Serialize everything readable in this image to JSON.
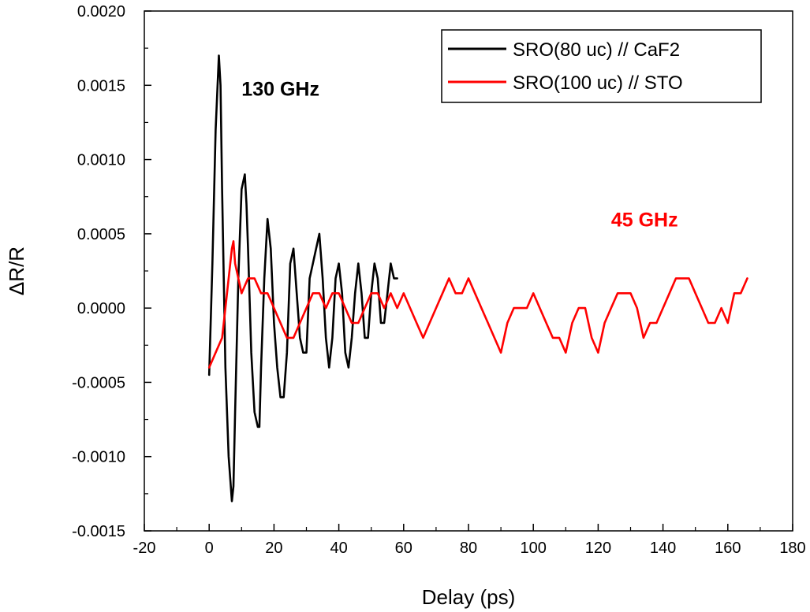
{
  "chart_data": {
    "type": "line",
    "xlabel": "Delay (ps)",
    "ylabel": "ΔR/R",
    "xlim": [
      -20,
      180
    ],
    "ylim": [
      -0.0015,
      0.002
    ],
    "x_ticks": [
      -20,
      0,
      20,
      40,
      60,
      80,
      100,
      120,
      140,
      160,
      180
    ],
    "x_tick_labels": [
      "-20",
      "0",
      "20",
      "40",
      "60",
      "80",
      "100",
      "120",
      "140",
      "160",
      "180"
    ],
    "y_ticks": [
      -0.0015,
      -0.001,
      -0.0005,
      0.0,
      0.0005,
      0.001,
      0.0015,
      0.002
    ],
    "y_tick_labels": [
      "-0.0015",
      "-0.0010",
      "-0.0005",
      "0.0000",
      "0.0005",
      "0.0010",
      "0.0015",
      "0.0020"
    ],
    "grid": false,
    "legend_position": "top-right",
    "series": [
      {
        "name": "SRO(80 uc) // CaF2",
        "color": "#000000",
        "x": [
          0,
          1,
          2,
          3,
          3.5,
          4,
          5,
          6,
          7,
          7.5,
          8,
          9,
          10,
          11,
          11.5,
          12,
          13,
          14,
          15,
          15.5,
          16,
          17,
          18,
          19,
          20,
          21,
          22,
          23,
          24,
          25,
          26,
          27,
          28,
          29,
          30,
          31,
          32,
          33,
          34,
          35,
          36,
          37,
          38,
          39,
          40,
          41,
          42,
          43,
          44,
          45,
          46,
          47,
          48,
          49,
          50,
          51,
          52,
          53,
          54,
          55,
          56,
          57,
          58
        ],
        "values": [
          -0.00045,
          0.0003,
          0.0012,
          0.0017,
          0.0015,
          0.0008,
          -0.0004,
          -0.001,
          -0.0013,
          -0.0012,
          -0.0007,
          0.0002,
          0.0008,
          0.0009,
          0.0007,
          0.0004,
          -0.0003,
          -0.0007,
          -0.0008,
          -0.0008,
          -0.0004,
          0.0002,
          0.0006,
          0.0004,
          -0.0001,
          -0.0004,
          -0.0006,
          -0.0006,
          -0.0003,
          0.0003,
          0.0004,
          0.0001,
          -0.0002,
          -0.0003,
          -0.0003,
          0.0002,
          0.0003,
          0.0004,
          0.0005,
          0.0002,
          -0.0002,
          -0.0004,
          -0.0002,
          0.0002,
          0.0003,
          0.0001,
          -0.0003,
          -0.0004,
          -0.0002,
          0.0001,
          0.0003,
          0.0001,
          -0.0002,
          -0.0002,
          0.0001,
          0.0003,
          0.0002,
          -0.0001,
          -0.0001,
          0.0001,
          0.0003,
          0.0002,
          0.0002
        ]
      },
      {
        "name": "SRO(100 uc) // STO",
        "color": "#ff0000",
        "x": [
          0,
          2,
          4,
          5,
          6,
          7,
          7.5,
          8,
          9,
          10,
          12,
          14,
          16,
          18,
          20,
          22,
          24,
          26,
          28,
          30,
          32,
          34,
          36,
          38,
          40,
          42,
          44,
          46,
          48,
          50,
          52,
          54,
          56,
          58,
          60,
          62,
          64,
          66,
          68,
          70,
          72,
          74,
          76,
          78,
          80,
          82,
          84,
          86,
          88,
          90,
          92,
          94,
          96,
          98,
          100,
          102,
          104,
          106,
          108,
          110,
          112,
          114,
          116,
          118,
          120,
          122,
          124,
          126,
          128,
          130,
          132,
          134,
          136,
          138,
          140,
          142,
          144,
          146,
          148,
          150,
          152,
          154,
          156,
          158,
          160,
          162,
          164,
          166
        ],
        "values": [
          -0.0004,
          -0.0003,
          -0.0002,
          0.0,
          0.0002,
          0.0004,
          0.00045,
          0.0003,
          0.0002,
          0.0001,
          0.0002,
          0.0002,
          0.0001,
          0.0001,
          0.0,
          -0.0001,
          -0.0002,
          -0.0002,
          -0.0001,
          0.0,
          0.0001,
          0.0001,
          0.0,
          0.0001,
          0.0001,
          0.0,
          -0.0001,
          -0.0001,
          0.0,
          0.0001,
          0.0001,
          0.0,
          0.0001,
          0.0,
          0.0001,
          0.0,
          -0.0001,
          -0.0002,
          -0.0001,
          0.0,
          0.0001,
          0.0002,
          0.0001,
          0.0001,
          0.0002,
          0.0001,
          0.0,
          -0.0001,
          -0.0002,
          -0.0003,
          -0.0001,
          0.0,
          0.0,
          0.0,
          0.0001,
          0.0,
          -0.0001,
          -0.0002,
          -0.0002,
          -0.0003,
          -0.0001,
          0.0,
          0.0,
          -0.0002,
          -0.0003,
          -0.0001,
          0.0,
          0.0001,
          0.0001,
          0.0001,
          0.0,
          -0.0002,
          -0.0001,
          -0.0001,
          0.0,
          0.0001,
          0.0002,
          0.0002,
          0.0002,
          0.0001,
          0.0,
          -0.0001,
          -0.0001,
          0.0,
          -0.0001,
          0.0001,
          0.0001,
          0.0002
        ]
      }
    ],
    "annotations": [
      {
        "text": "130 GHz",
        "x": 10,
        "y": 0.00143,
        "color": "#000000"
      },
      {
        "text": "45 GHz",
        "x": 124,
        "y": 0.00055,
        "color": "#ff0000"
      }
    ]
  }
}
